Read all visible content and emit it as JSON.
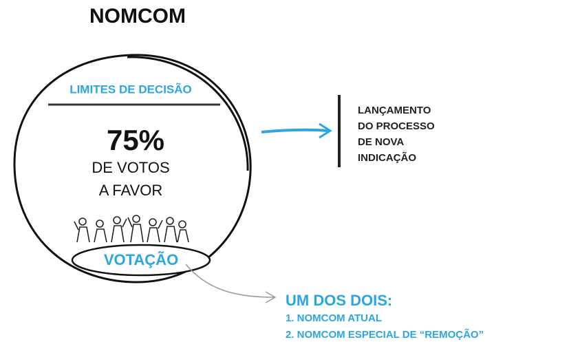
{
  "title": "NOMCOM",
  "circle": {
    "heading": "LIMITES DE DECISÃO",
    "threshold": "75%",
    "threshold_caption": [
      "DE VOTOS",
      "A FAVOR"
    ],
    "label": "VOTAÇÃO"
  },
  "outcome": [
    "LANÇAMENTO",
    "DO PROCESSO",
    "DE NOVA",
    "INDICAÇÃO"
  ],
  "note": {
    "heading": "UM DOS DOIS:",
    "items": [
      "1. NOMCOM ATUAL",
      "2. NOMCOM ESPECIAL DE “REMOÇÃO”"
    ]
  }
}
